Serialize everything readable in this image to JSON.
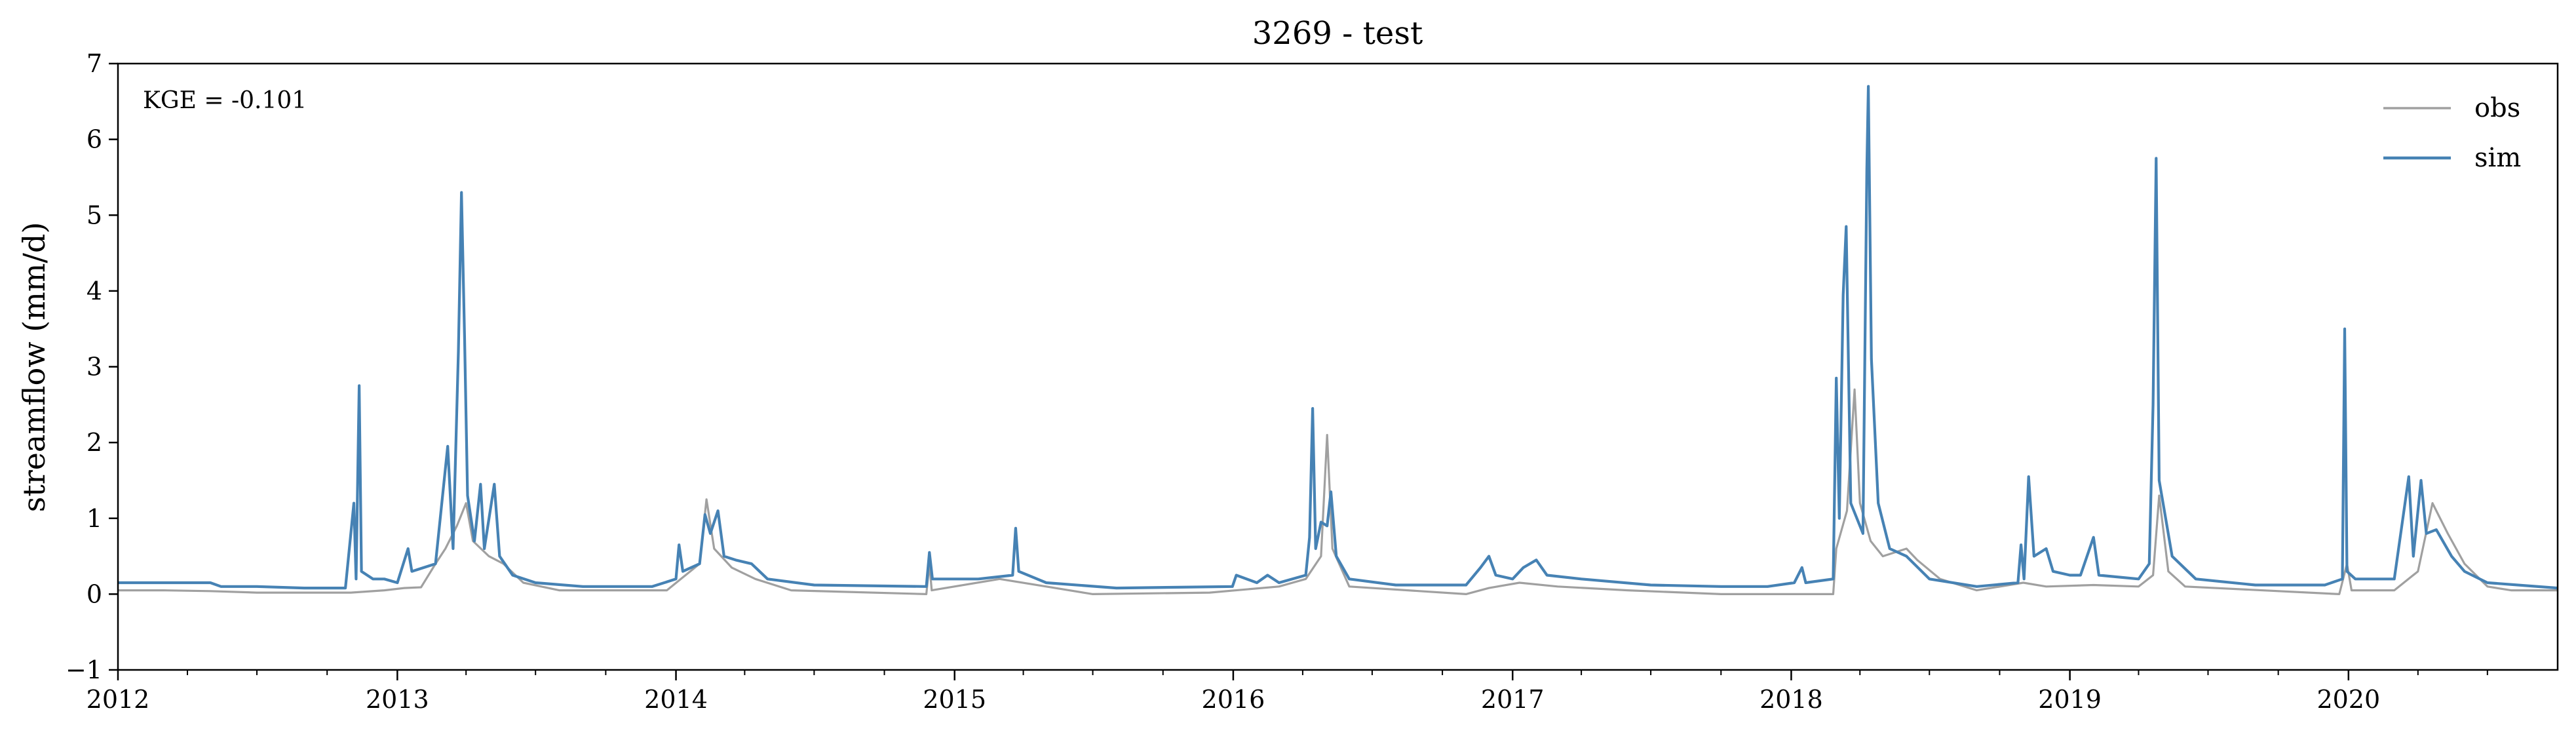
{
  "chart_data": {
    "type": "line",
    "title": "3269 - test",
    "xlabel": "",
    "ylabel": "streamflow (mm/d)",
    "annotation": "KGE = -0.101",
    "xlim": [
      "2012-01-01",
      "2020-10-01"
    ],
    "ylim": [
      -1,
      7
    ],
    "x_ticks": [
      "2012",
      "2013",
      "2014",
      "2015",
      "2016",
      "2017",
      "2018",
      "2019",
      "2020"
    ],
    "y_ticks": [
      "−1",
      "0",
      "1",
      "2",
      "3",
      "4",
      "5",
      "6",
      "7"
    ],
    "legend_position": "top-right",
    "grid": false,
    "series": [
      {
        "name": "obs",
        "color": "#a0a0a0",
        "points": [
          [
            "2012-01-01",
            0.05
          ],
          [
            "2012-03-01",
            0.05
          ],
          [
            "2012-05-01",
            0.04
          ],
          [
            "2012-07-01",
            0.02
          ],
          [
            "2012-09-01",
            0.02
          ],
          [
            "2012-11-01",
            0.02
          ],
          [
            "2012-12-15",
            0.05
          ],
          [
            "2013-01-10",
            0.08
          ],
          [
            "2013-02-01",
            0.09
          ],
          [
            "2013-02-20",
            0.4
          ],
          [
            "2013-03-05",
            0.6
          ],
          [
            "2013-03-20",
            0.9
          ],
          [
            "2013-04-01",
            1.2
          ],
          [
            "2013-04-10",
            0.7
          ],
          [
            "2013-05-01",
            0.5
          ],
          [
            "2013-05-20",
            0.4
          ],
          [
            "2013-06-15",
            0.15
          ],
          [
            "2013-08-01",
            0.05
          ],
          [
            "2013-12-20",
            0.05
          ],
          [
            "2014-02-01",
            0.4
          ],
          [
            "2014-02-10",
            1.25
          ],
          [
            "2014-02-20",
            0.6
          ],
          [
            "2014-03-15",
            0.35
          ],
          [
            "2014-04-15",
            0.2
          ],
          [
            "2014-06-01",
            0.05
          ],
          [
            "2014-11-25",
            0.0
          ],
          [
            "2014-11-29",
            0.4
          ],
          [
            "2014-12-02",
            0.05
          ],
          [
            "2015-03-01",
            0.2
          ],
          [
            "2015-05-01",
            0.1
          ],
          [
            "2015-07-01",
            0.0
          ],
          [
            "2015-12-01",
            0.02
          ],
          [
            "2016-03-01",
            0.1
          ],
          [
            "2016-04-05",
            0.2
          ],
          [
            "2016-04-25",
            0.5
          ],
          [
            "2016-05-03",
            2.1
          ],
          [
            "2016-05-10",
            0.6
          ],
          [
            "2016-06-01",
            0.1
          ],
          [
            "2016-11-01",
            0.0
          ],
          [
            "2016-12-01",
            0.08
          ],
          [
            "2017-01-10",
            0.15
          ],
          [
            "2017-03-01",
            0.1
          ],
          [
            "2017-06-01",
            0.05
          ],
          [
            "2017-10-01",
            0.0
          ],
          [
            "2018-02-25",
            0.0
          ],
          [
            "2018-03-01",
            0.6
          ],
          [
            "2018-03-15",
            1.1
          ],
          [
            "2018-03-25",
            2.7
          ],
          [
            "2018-04-01",
            1.2
          ],
          [
            "2018-04-15",
            0.7
          ],
          [
            "2018-05-01",
            0.5
          ],
          [
            "2018-06-01",
            0.6
          ],
          [
            "2018-06-15",
            0.45
          ],
          [
            "2018-07-15",
            0.2
          ],
          [
            "2018-09-01",
            0.05
          ],
          [
            "2018-11-01",
            0.15
          ],
          [
            "2018-12-01",
            0.1
          ],
          [
            "2019-02-01",
            0.12
          ],
          [
            "2019-04-01",
            0.1
          ],
          [
            "2019-04-20",
            0.25
          ],
          [
            "2019-04-28",
            1.3
          ],
          [
            "2019-05-10",
            0.3
          ],
          [
            "2019-06-01",
            0.1
          ],
          [
            "2019-12-20",
            0.0
          ],
          [
            "2019-12-30",
            0.4
          ],
          [
            "2020-01-05",
            0.05
          ],
          [
            "2020-03-01",
            0.05
          ],
          [
            "2020-04-01",
            0.3
          ],
          [
            "2020-04-20",
            1.2
          ],
          [
            "2020-05-10",
            0.8
          ],
          [
            "2020-06-01",
            0.4
          ],
          [
            "2020-07-01",
            0.1
          ],
          [
            "2020-08-01",
            0.05
          ],
          [
            "2020-10-01",
            0.05
          ]
        ]
      },
      {
        "name": "sim",
        "color": "#4682b4",
        "points": [
          [
            "2012-01-01",
            0.15
          ],
          [
            "2012-03-01",
            0.15
          ],
          [
            "2012-05-01",
            0.15
          ],
          [
            "2012-05-15",
            0.1
          ],
          [
            "2012-07-01",
            0.1
          ],
          [
            "2012-09-01",
            0.08
          ],
          [
            "2012-10-25",
            0.08
          ],
          [
            "2012-11-05",
            1.2
          ],
          [
            "2012-11-08",
            0.2
          ],
          [
            "2012-11-12",
            2.75
          ],
          [
            "2012-11-15",
            0.3
          ],
          [
            "2012-11-30",
            0.2
          ],
          [
            "2012-12-15",
            0.2
          ],
          [
            "2013-01-01",
            0.15
          ],
          [
            "2013-01-15",
            0.6
          ],
          [
            "2013-01-20",
            0.3
          ],
          [
            "2013-02-20",
            0.4
          ],
          [
            "2013-03-08",
            1.95
          ],
          [
            "2013-03-15",
            0.6
          ],
          [
            "2013-03-22",
            3.2
          ],
          [
            "2013-03-26",
            5.3
          ],
          [
            "2013-03-30",
            3.4
          ],
          [
            "2013-04-03",
            1.3
          ],
          [
            "2013-04-12",
            0.7
          ],
          [
            "2013-04-20",
            1.45
          ],
          [
            "2013-04-25",
            0.6
          ],
          [
            "2013-05-08",
            1.45
          ],
          [
            "2013-05-15",
            0.5
          ],
          [
            "2013-06-01",
            0.25
          ],
          [
            "2013-07-01",
            0.15
          ],
          [
            "2013-09-01",
            0.1
          ],
          [
            "2013-12-01",
            0.1
          ],
          [
            "2014-01-01",
            0.2
          ],
          [
            "2014-01-05",
            0.65
          ],
          [
            "2014-01-10",
            0.3
          ],
          [
            "2014-02-01",
            0.4
          ],
          [
            "2014-02-08",
            1.05
          ],
          [
            "2014-02-15",
            0.8
          ],
          [
            "2014-02-25",
            1.1
          ],
          [
            "2014-03-05",
            0.5
          ],
          [
            "2014-03-20",
            0.45
          ],
          [
            "2014-04-10",
            0.4
          ],
          [
            "2014-05-01",
            0.2
          ],
          [
            "2014-07-01",
            0.12
          ],
          [
            "2014-11-25",
            0.1
          ],
          [
            "2014-11-29",
            0.55
          ],
          [
            "2014-12-03",
            0.2
          ],
          [
            "2015-02-01",
            0.2
          ],
          [
            "2015-03-18",
            0.25
          ],
          [
            "2015-03-22",
            0.87
          ],
          [
            "2015-03-26",
            0.3
          ],
          [
            "2015-05-01",
            0.15
          ],
          [
            "2015-08-01",
            0.08
          ],
          [
            "2015-12-31",
            0.1
          ],
          [
            "2016-01-05",
            0.25
          ],
          [
            "2016-02-01",
            0.15
          ],
          [
            "2016-02-15",
            0.25
          ],
          [
            "2016-03-01",
            0.15
          ],
          [
            "2016-04-05",
            0.25
          ],
          [
            "2016-04-10",
            0.75
          ],
          [
            "2016-04-14",
            2.45
          ],
          [
            "2016-04-18",
            0.6
          ],
          [
            "2016-04-25",
            0.95
          ],
          [
            "2016-05-03",
            0.9
          ],
          [
            "2016-05-08",
            1.35
          ],
          [
            "2016-05-15",
            0.5
          ],
          [
            "2016-06-01",
            0.2
          ],
          [
            "2016-08-01",
            0.12
          ],
          [
            "2016-11-01",
            0.12
          ],
          [
            "2016-11-20",
            0.35
          ],
          [
            "2016-12-01",
            0.5
          ],
          [
            "2016-12-10",
            0.25
          ],
          [
            "2017-01-01",
            0.2
          ],
          [
            "2017-01-15",
            0.35
          ],
          [
            "2017-02-01",
            0.45
          ],
          [
            "2017-02-15",
            0.25
          ],
          [
            "2017-04-01",
            0.2
          ],
          [
            "2017-07-01",
            0.12
          ],
          [
            "2017-10-01",
            0.1
          ],
          [
            "2017-12-01",
            0.1
          ],
          [
            "2018-01-05",
            0.15
          ],
          [
            "2018-01-15",
            0.35
          ],
          [
            "2018-01-20",
            0.15
          ],
          [
            "2018-02-25",
            0.2
          ],
          [
            "2018-03-01",
            2.85
          ],
          [
            "2018-03-05",
            1.0
          ],
          [
            "2018-03-10",
            3.95
          ],
          [
            "2018-03-14",
            4.85
          ],
          [
            "2018-03-20",
            1.2
          ],
          [
            "2018-04-05",
            0.8
          ],
          [
            "2018-04-10",
            5.6
          ],
          [
            "2018-04-12",
            6.7
          ],
          [
            "2018-04-16",
            3.1
          ],
          [
            "2018-04-25",
            1.2
          ],
          [
            "2018-05-10",
            0.6
          ],
          [
            "2018-06-01",
            0.5
          ],
          [
            "2018-07-01",
            0.2
          ],
          [
            "2018-09-01",
            0.1
          ],
          [
            "2018-10-25",
            0.15
          ],
          [
            "2018-10-29",
            0.65
          ],
          [
            "2018-11-02",
            0.2
          ],
          [
            "2018-11-08",
            1.55
          ],
          [
            "2018-11-15",
            0.5
          ],
          [
            "2018-12-01",
            0.6
          ],
          [
            "2018-12-10",
            0.3
          ],
          [
            "2019-01-01",
            0.25
          ],
          [
            "2019-01-15",
            0.25
          ],
          [
            "2019-02-01",
            0.75
          ],
          [
            "2019-02-08",
            0.25
          ],
          [
            "2019-04-01",
            0.2
          ],
          [
            "2019-04-15",
            0.4
          ],
          [
            "2019-04-20",
            2.5
          ],
          [
            "2019-04-24",
            5.75
          ],
          [
            "2019-04-28",
            1.5
          ],
          [
            "2019-05-15",
            0.5
          ],
          [
            "2019-06-15",
            0.2
          ],
          [
            "2019-09-01",
            0.12
          ],
          [
            "2019-12-01",
            0.12
          ],
          [
            "2019-12-24",
            0.2
          ],
          [
            "2019-12-27",
            3.5
          ],
          [
            "2019-12-30",
            0.3
          ],
          [
            "2020-01-10",
            0.2
          ],
          [
            "2020-03-01",
            0.2
          ],
          [
            "2020-03-20",
            1.55
          ],
          [
            "2020-03-26",
            0.5
          ],
          [
            "2020-04-05",
            1.5
          ],
          [
            "2020-04-12",
            0.8
          ],
          [
            "2020-04-25",
            0.85
          ],
          [
            "2020-05-15",
            0.5
          ],
          [
            "2020-06-01",
            0.3
          ],
          [
            "2020-07-01",
            0.15
          ],
          [
            "2020-10-01",
            0.08
          ]
        ]
      }
    ]
  }
}
